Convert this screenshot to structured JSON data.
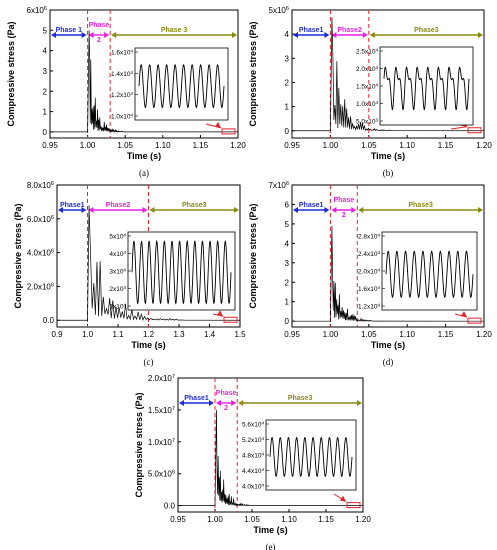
{
  "colors": {
    "phase1": "#1f2bd6",
    "phase2": "#e81fe0",
    "phase3": "#8a8a12",
    "marker": "#e0252c",
    "line": "#000000"
  },
  "chart_data": [
    {
      "type": "line",
      "caption": "(a)",
      "xlabel": "Time (s)",
      "ylabel": "Compressive stress (Pa)",
      "xlim": [
        0.95,
        1.2
      ],
      "xticks": [
        "0.95",
        "1.00",
        "1.05",
        "1.10",
        "1.15",
        "1.20"
      ],
      "ylim": [
        -300000,
        6000000
      ],
      "yticks": [
        {
          "value": 0,
          "label": "0"
        },
        {
          "value": 1000000,
          "label": "1"
        },
        {
          "value": 2000000,
          "label": "2"
        },
        {
          "value": 3000000,
          "label": "3"
        },
        {
          "value": 4000000,
          "label": "4"
        },
        {
          "value": 5000000,
          "label": "5"
        },
        {
          "value": 6000000,
          "label": "6x10^6"
        }
      ],
      "phases": [
        {
          "label": "Phase 1",
          "start": 0.95,
          "end": 1.0
        },
        {
          "label": "Phase 2",
          "start": 1.0,
          "end": 1.03
        },
        {
          "label": "Phase 3",
          "start": 1.03,
          "end": 1.2
        }
      ],
      "peak": {
        "time": 1.002,
        "value": 5000000
      },
      "inset": {
        "yticks": [
          "1.0x10^4",
          "1.2x10^4",
          "1.4x10^4",
          "1.6x10^4"
        ],
        "ymin": 10000,
        "ymax": 16000,
        "wave_min": 10800,
        "wave_max": 14800,
        "cycles": 10
      }
    },
    {
      "type": "line",
      "caption": "(b)",
      "xlabel": "Time (s)",
      "ylabel": "Compressive stress (Pa)",
      "xlim": [
        0.95,
        1.2
      ],
      "xticks": [
        "0.95",
        "1.00",
        "1.05",
        "1.10",
        "1.15",
        "1.20"
      ],
      "ylim": [
        -300000,
        5000000
      ],
      "yticks": [
        {
          "value": 0,
          "label": "0"
        },
        {
          "value": 1000000,
          "label": "1"
        },
        {
          "value": 2000000,
          "label": "2"
        },
        {
          "value": 3000000,
          "label": "3"
        },
        {
          "value": 4000000,
          "label": "4"
        },
        {
          "value": 5000000,
          "label": "5x10^6"
        }
      ],
      "phases": [
        {
          "label": "Phase1",
          "start": 0.95,
          "end": 1.0
        },
        {
          "label": "Phase2",
          "start": 1.0,
          "end": 1.05
        },
        {
          "label": "Phase3",
          "start": 1.05,
          "end": 1.2
        }
      ],
      "peak": {
        "time": 1.002,
        "value": 4700000
      },
      "inset": {
        "yticks": [
          "5.0x10^3",
          "1.0x10^4",
          "1.5x10^4",
          "2.0x10^4",
          "2.5x10^4"
        ],
        "ymin": 5000,
        "ymax": 25000,
        "wave_min": 8000,
        "wave_max": 22500,
        "cycles": 8
      }
    },
    {
      "type": "line",
      "caption": "(c)",
      "xlabel": "Time (s)",
      "ylabel": "Compressive stress (Pa)",
      "xlim": [
        0.9,
        1.5
      ],
      "xticks": [
        "0.9",
        "1.0",
        "1.1",
        "1.2",
        "1.3",
        "1.4",
        "1.5"
      ],
      "ylim": [
        -400000,
        8000000
      ],
      "yticks": [
        {
          "value": 0,
          "label": "0.0"
        },
        {
          "value": 2000000,
          "label": "2.0x10^6"
        },
        {
          "value": 4000000,
          "label": "4.0x10^6"
        },
        {
          "value": 6000000,
          "label": "6.0x10^6"
        },
        {
          "value": 8000000,
          "label": "8.0x10^6"
        }
      ],
      "phases": [
        {
          "label": "Phase1",
          "start": 0.9,
          "end": 1.0
        },
        {
          "label": "Phase2",
          "start": 1.0,
          "end": 1.2
        },
        {
          "label": "Phase3",
          "start": 1.2,
          "end": 1.5
        }
      ],
      "peak": {
        "time": 1.005,
        "value": 6800000
      },
      "inset": {
        "yticks": [
          "1x10^4",
          "2x10^4",
          "3x10^4",
          "4x10^4",
          "5x10^4"
        ],
        "ymin": 10000,
        "ymax": 50000,
        "wave_min": 11500,
        "wave_max": 47000,
        "cycles": 13
      }
    },
    {
      "type": "line",
      "caption": "(d)",
      "xlabel": "Time (s)",
      "ylabel": "Compressive stress (Pa)",
      "xlim": [
        0.95,
        1.2
      ],
      "xticks": [
        "0.95",
        "1.00",
        "1.05",
        "1.10",
        "1.15",
        "1.20"
      ],
      "ylim": [
        -300000,
        7000000
      ],
      "yticks": [
        {
          "value": 0,
          "label": "0"
        },
        {
          "value": 1000000,
          "label": "1"
        },
        {
          "value": 2000000,
          "label": "2"
        },
        {
          "value": 3000000,
          "label": "3"
        },
        {
          "value": 4000000,
          "label": "4"
        },
        {
          "value": 5000000,
          "label": "5"
        },
        {
          "value": 6000000,
          "label": "6"
        },
        {
          "value": 7000000,
          "label": "7x10^6"
        }
      ],
      "phases": [
        {
          "label": "Phase1",
          "start": 0.95,
          "end": 1.0
        },
        {
          "label": "Phase 2",
          "start": 1.0,
          "end": 1.035
        },
        {
          "label": "Phase3",
          "start": 1.035,
          "end": 1.2
        }
      ],
      "peak": {
        "time": 1.002,
        "value": 4900000
      },
      "inset": {
        "yticks": [
          "1.2x10^4",
          "1.6x10^4",
          "2.0x10^4",
          "2.4x10^4",
          "2.8x10^4"
        ],
        "ymin": 12000,
        "ymax": 28000,
        "wave_min": 14000,
        "wave_max": 24500,
        "cycles": 10
      }
    },
    {
      "type": "line",
      "caption": "(e)",
      "xlabel": "Time (s)",
      "ylabel": "Compressive stress (Pa)",
      "xlim": [
        0.95,
        1.2
      ],
      "xticks": [
        "0.95",
        "1.00",
        "1.05",
        "1.10",
        "1.15",
        "1.20"
      ],
      "ylim": [
        -1000000,
        20000000
      ],
      "yticks": [
        {
          "value": 0,
          "label": "0.0"
        },
        {
          "value": 5000000,
          "label": "5.0x10^6"
        },
        {
          "value": 10000000,
          "label": "1.0x10^7"
        },
        {
          "value": 15000000,
          "label": "1.5x10^7"
        },
        {
          "value": 20000000,
          "label": "2.0x10^7"
        }
      ],
      "phases": [
        {
          "label": "Phase1",
          "start": 0.95,
          "end": 1.0
        },
        {
          "label": "Phase 2",
          "start": 1.0,
          "end": 1.03
        },
        {
          "label": "Phase3",
          "start": 1.03,
          "end": 1.2
        }
      ],
      "peak": {
        "time": 1.002,
        "value": 15000000
      },
      "inset": {
        "yticks": [
          "4.0x10^4",
          "4.4x10^4",
          "4.8x10^4",
          "5.2x10^4",
          "5.6x10^4"
        ],
        "ymin": 40000,
        "ymax": 56000,
        "wave_min": 42500,
        "wave_max": 52500,
        "cycles": 10
      }
    }
  ]
}
